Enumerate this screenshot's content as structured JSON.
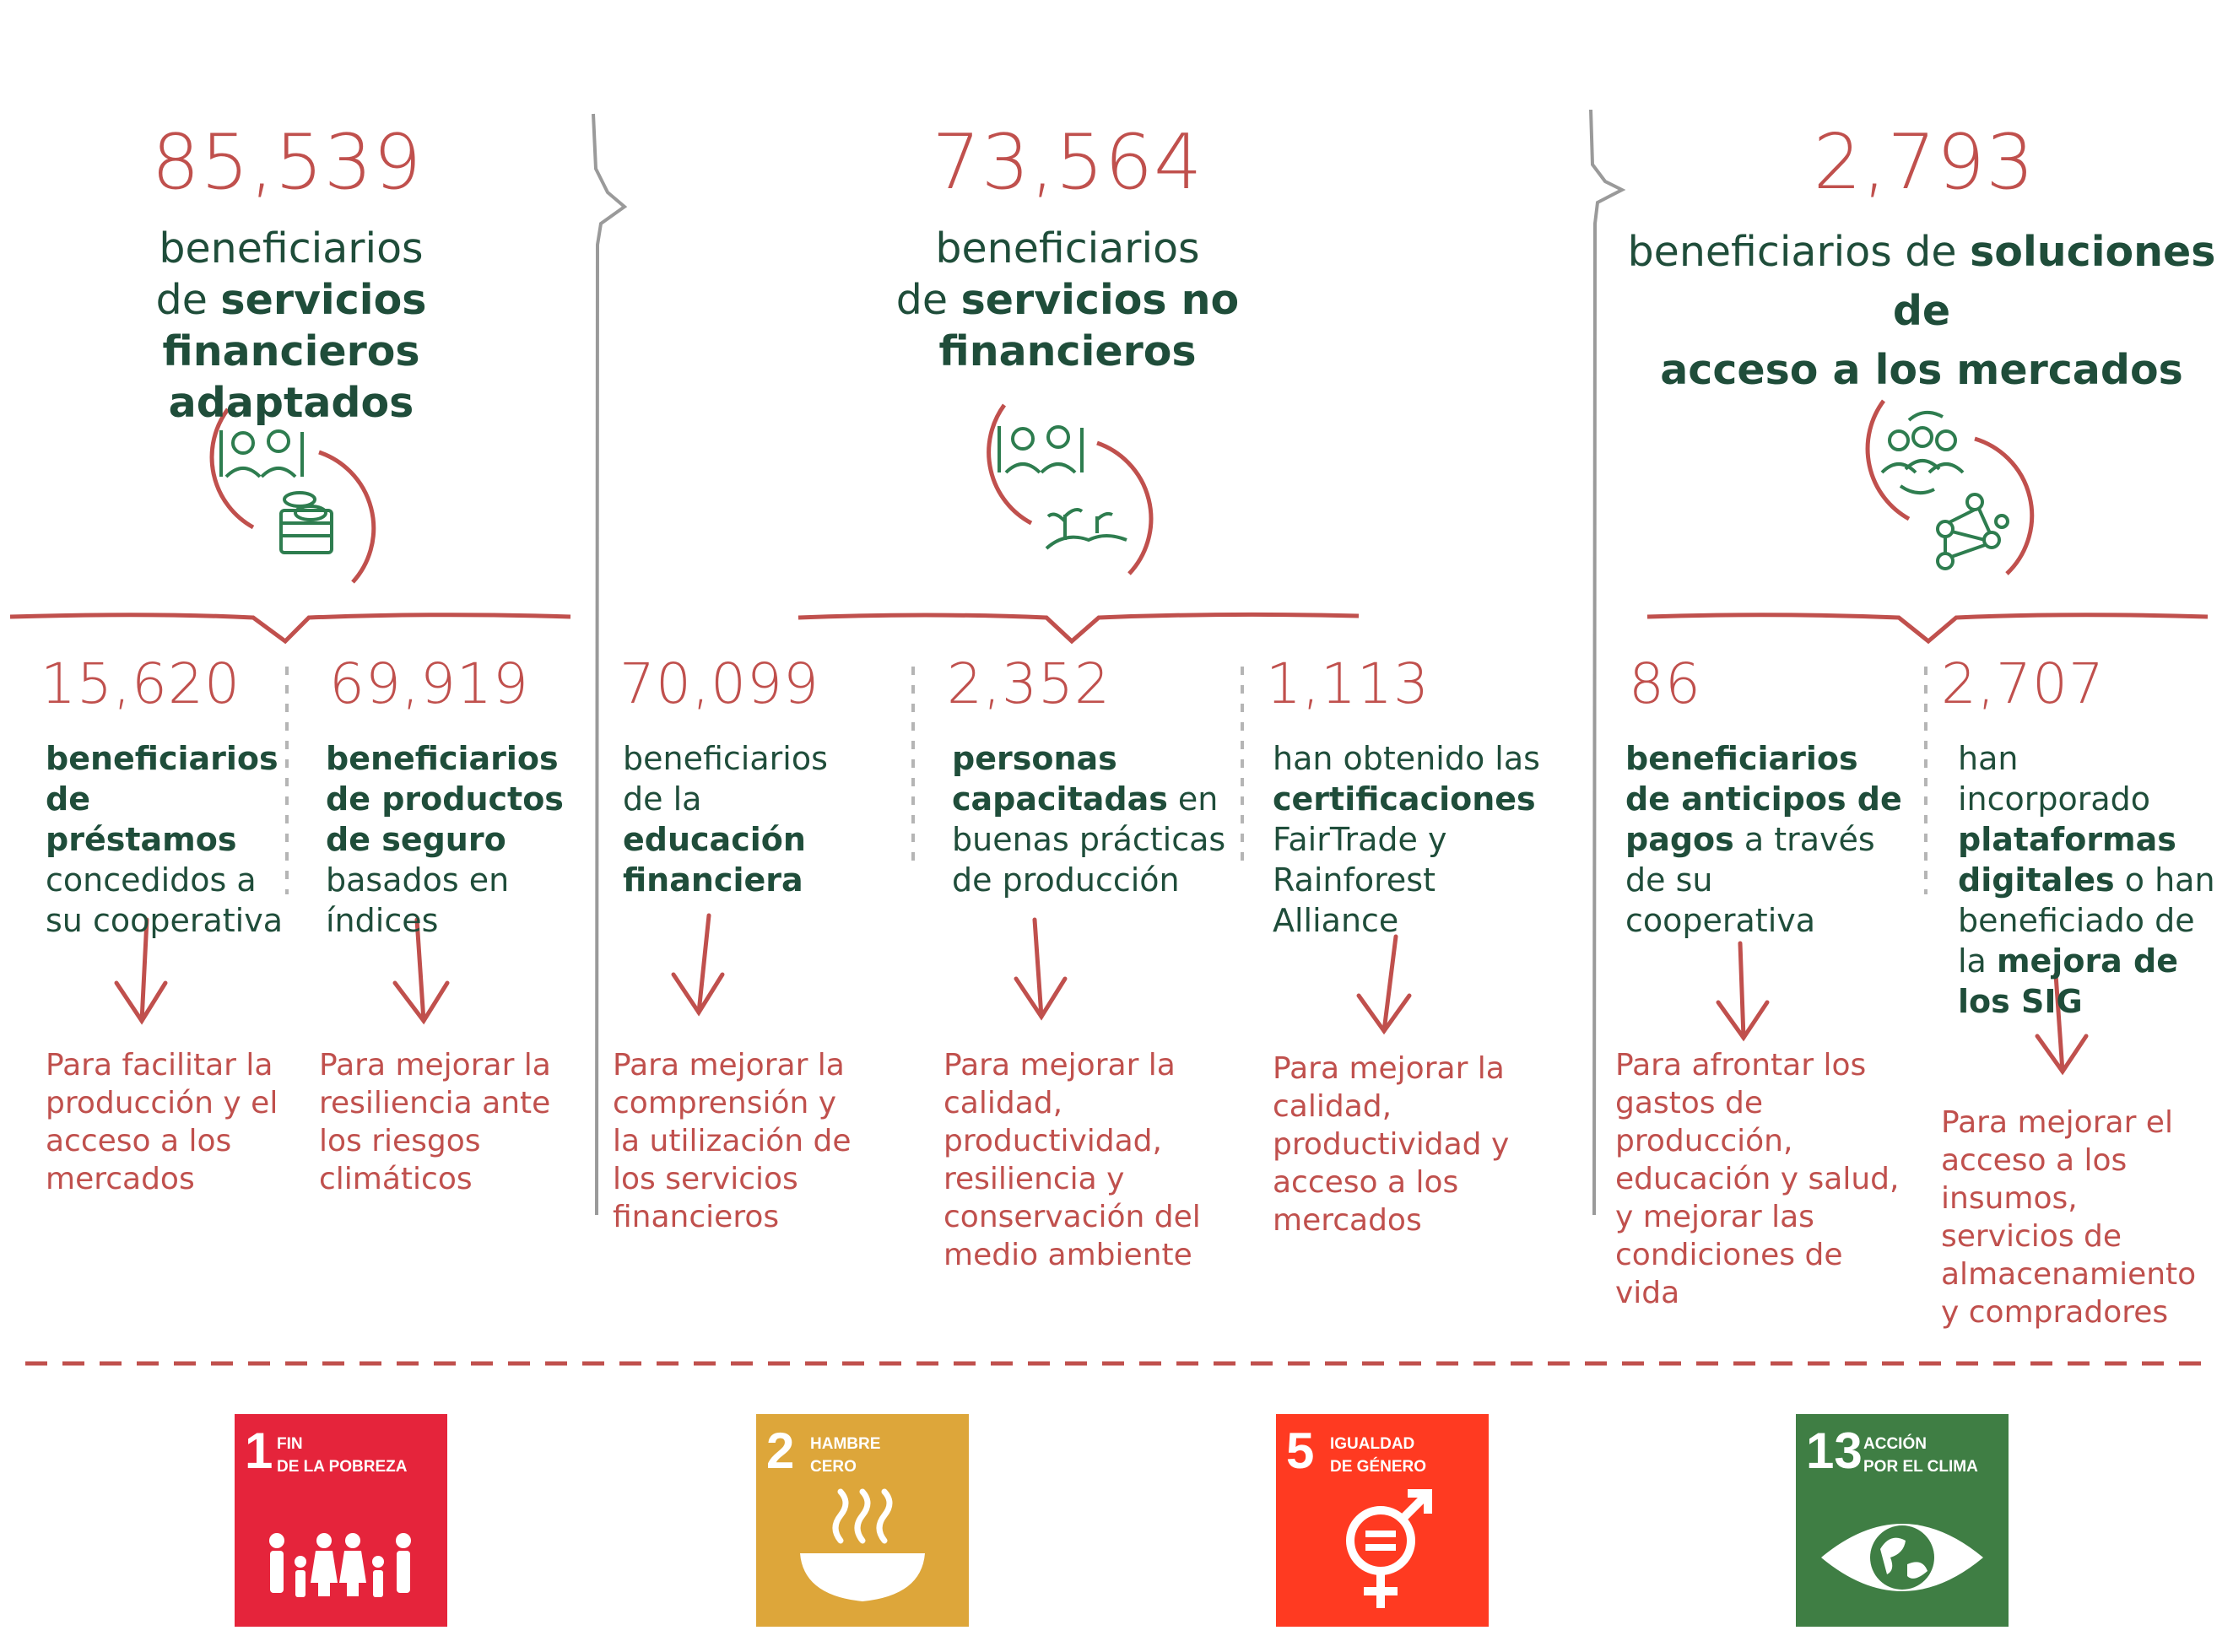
{
  "colors": {
    "accent_red": "#c0504d",
    "text_green": "#1f4d3a",
    "icon_green": "#2e7d4f"
  },
  "columns": [
    {
      "big_number": "85,539",
      "heading_plain_1": "beneficiarios",
      "heading_plain_2": "de ",
      "heading_bold": "servicios financieros adaptados",
      "sub": [
        {
          "number": "15,620",
          "bold": "beneficiarios de préstamos",
          "text": " concedidos a su cooperativa",
          "purpose": "Para facilitar la producción y el acceso a los mercados"
        },
        {
          "number": "69,919",
          "bold": "beneficiarios de productos de seguro",
          "text": " basados en índices",
          "purpose": "Para mejorar la resiliencia ante los riesgos climáticos"
        }
      ]
    },
    {
      "big_number": "73,564",
      "heading_plain_1": "beneficiarios",
      "heading_plain_2": "de ",
      "heading_bold": "servicios no financieros",
      "sub": [
        {
          "number": "70,099",
          "text_before": "beneficiarios de la ",
          "bold": "educación financiera",
          "purpose": "Para mejorar la comprensión y la utilización de los servicios financieros"
        },
        {
          "number": "2,352",
          "bold": "personas capacitadas",
          "text": " en buenas prácticas de producción",
          "purpose": "Para mejorar la calidad, productividad, resiliencia y conservación del medio ambiente"
        },
        {
          "number": "1,113",
          "text_before": "han obtenido las ",
          "bold": "certificaciones",
          "text": " FairTrade y Rainforest Alliance",
          "purpose": "Para mejorar la calidad, productividad y acceso a los mercados"
        }
      ]
    },
    {
      "big_number": "2,793",
      "heading_plain_1": "beneficiarios de ",
      "heading_bold_1": "soluciones de",
      "heading_bold_2": "acceso a los mercados",
      "sub": [
        {
          "number": "86",
          "bold": "beneficiarios de anticipos de pagos",
          "text": " a través de su cooperativa",
          "purpose": "Para afrontar los gastos de producción, educación y salud, y mejorar las condiciones de vida"
        },
        {
          "number": "2,707",
          "text_before": "han incorporado ",
          "bold": "plataformas digitales",
          "text": " o han beneficiado de la ",
          "bold2": "mejora de los SIG",
          "purpose": "Para mejorar el acceso a los insumos, servicios de almacenamiento y compradores"
        }
      ]
    }
  ],
  "sdgs": [
    {
      "number": "1",
      "label": "Fin\nde la pobreza",
      "color": "#e5243b",
      "icon": "family-icon"
    },
    {
      "number": "2",
      "label": "Hambre\ncero",
      "color": "#dda63a",
      "icon": "bowl-icon"
    },
    {
      "number": "5",
      "label": "Igualdad\nde género",
      "color": "#ff3a21",
      "icon": "gender-equality-icon"
    },
    {
      "number": "13",
      "label": "Acción\npor el clima",
      "color": "#3f7e44",
      "icon": "eye-globe-icon"
    }
  ]
}
